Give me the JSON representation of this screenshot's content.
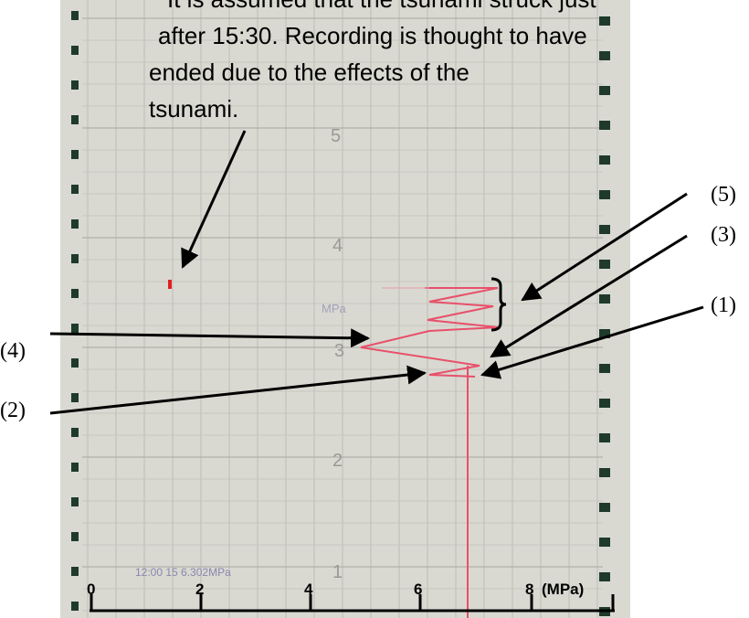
{
  "annotation": {
    "lines": [
      "It is assumed that the tsunami struck just",
      "after 15:30. Recording is thought to have",
      "ended due to the effects of the",
      "tsunami."
    ]
  },
  "callouts": {
    "c5": "(5)",
    "c3": "(3)",
    "c1": "(1)",
    "c4": "(4)",
    "c2": "(2)"
  },
  "axis": {
    "ticks": [
      "0",
      "2",
      "4",
      "6",
      "8"
    ],
    "unit": "(MPa)"
  },
  "paper": {
    "scale_labels": [
      "5",
      "4",
      "3",
      "2",
      "1"
    ],
    "unit": "MPa",
    "footer": "12:00 15 6.302MPa"
  }
}
